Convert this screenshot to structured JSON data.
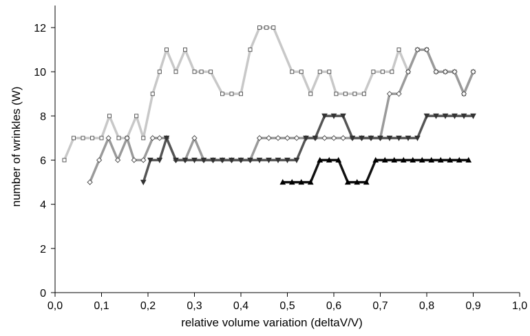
{
  "chart_data": {
    "type": "line",
    "xlabel": "relative volume variation (deltaV/V)",
    "ylabel": "number of wrinkles (W)",
    "xlim": [
      0,
      1.0
    ],
    "ylim": [
      0,
      13
    ],
    "xticks": [
      "0,0",
      "0,1",
      "0,2",
      "0,3",
      "0,4",
      "0,5",
      "0,6",
      "0,7",
      "0,8",
      "0,9",
      "1,0"
    ],
    "xtick_values": [
      0,
      0.1,
      0.2,
      0.3,
      0.4,
      0.5,
      0.6,
      0.7,
      0.8,
      0.9,
      1.0
    ],
    "yticks": [
      "0",
      "2",
      "4",
      "6",
      "8",
      "10",
      "12"
    ],
    "ytick_values": [
      0,
      2,
      4,
      6,
      8,
      10,
      12
    ],
    "grid": false,
    "legend": "none",
    "series": [
      {
        "marker": "square",
        "color": "#c8c8c8",
        "x": [
          0.02,
          0.04,
          0.06,
          0.08,
          0.1,
          0.117,
          0.137,
          0.155,
          0.175,
          0.19,
          0.21,
          0.225,
          0.24,
          0.26,
          0.28,
          0.3,
          0.315,
          0.335,
          0.36,
          0.38,
          0.4,
          0.42,
          0.44,
          0.455,
          0.47,
          0.51,
          0.53,
          0.55,
          0.57,
          0.59,
          0.605,
          0.625,
          0.645,
          0.665,
          0.685,
          0.705,
          0.725,
          0.74,
          0.76,
          0.78,
          0.8,
          0.82,
          0.84,
          0.86,
          0.88,
          0.9
        ],
        "y": [
          6,
          7,
          7,
          7,
          7,
          8,
          7,
          7,
          8,
          7,
          9,
          10,
          11,
          10,
          11,
          10,
          10,
          10,
          9,
          9,
          9,
          11,
          12,
          12,
          12,
          10,
          10,
          9,
          10,
          10,
          9,
          9,
          9,
          9,
          10,
          10,
          10,
          11,
          10,
          11,
          11,
          10,
          10,
          10,
          9,
          10
        ]
      },
      {
        "marker": "diamond",
        "color": "#9a9a9a",
        "x": [
          0.075,
          0.095,
          0.115,
          0.135,
          0.155,
          0.17,
          0.19,
          0.21,
          0.225,
          0.24,
          0.26,
          0.28,
          0.3,
          0.32,
          0.34,
          0.36,
          0.38,
          0.4,
          0.42,
          0.44,
          0.46,
          0.48,
          0.5,
          0.52,
          0.54,
          0.56,
          0.58,
          0.6,
          0.62,
          0.64,
          0.66,
          0.68,
          0.7,
          0.72,
          0.74,
          0.76,
          0.78,
          0.8,
          0.82,
          0.84,
          0.86,
          0.88,
          0.9
        ],
        "y": [
          5,
          6,
          7,
          6,
          7,
          6,
          6,
          7,
          7,
          7,
          6,
          6,
          7,
          6,
          6,
          6,
          6,
          6,
          6,
          7,
          7,
          7,
          7,
          7,
          7,
          7,
          7,
          7,
          7,
          7,
          7,
          7,
          7,
          9,
          9,
          10,
          11,
          11,
          10,
          10,
          10,
          9,
          10
        ]
      },
      {
        "marker": "triangle-down",
        "color": "#555555",
        "x": [
          0.19,
          0.205,
          0.225,
          0.24,
          0.26,
          0.28,
          0.3,
          0.32,
          0.34,
          0.36,
          0.38,
          0.4,
          0.42,
          0.44,
          0.46,
          0.48,
          0.5,
          0.52,
          0.54,
          0.56,
          0.58,
          0.6,
          0.62,
          0.64,
          0.66,
          0.68,
          0.7,
          0.72,
          0.74,
          0.76,
          0.78,
          0.8,
          0.82,
          0.84,
          0.86,
          0.88,
          0.9
        ],
        "y": [
          5,
          6,
          6,
          7,
          6,
          6,
          6,
          6,
          6,
          6,
          6,
          6,
          6,
          6,
          6,
          6,
          6,
          6,
          7,
          7,
          8,
          8,
          8,
          7,
          7,
          7,
          7,
          7,
          7,
          7,
          7,
          8,
          8,
          8,
          8,
          8,
          8
        ]
      },
      {
        "marker": "triangle-up",
        "color": "#111111",
        "x": [
          0.49,
          0.51,
          0.53,
          0.55,
          0.57,
          0.59,
          0.61,
          0.63,
          0.65,
          0.67,
          0.69,
          0.71,
          0.73,
          0.75,
          0.77,
          0.79,
          0.81,
          0.83,
          0.85,
          0.87,
          0.89
        ],
        "y": [
          5,
          5,
          5,
          5,
          6,
          6,
          6,
          5,
          5,
          5,
          6,
          6,
          6,
          6,
          6,
          6,
          6,
          6,
          6,
          6,
          6
        ]
      }
    ]
  }
}
